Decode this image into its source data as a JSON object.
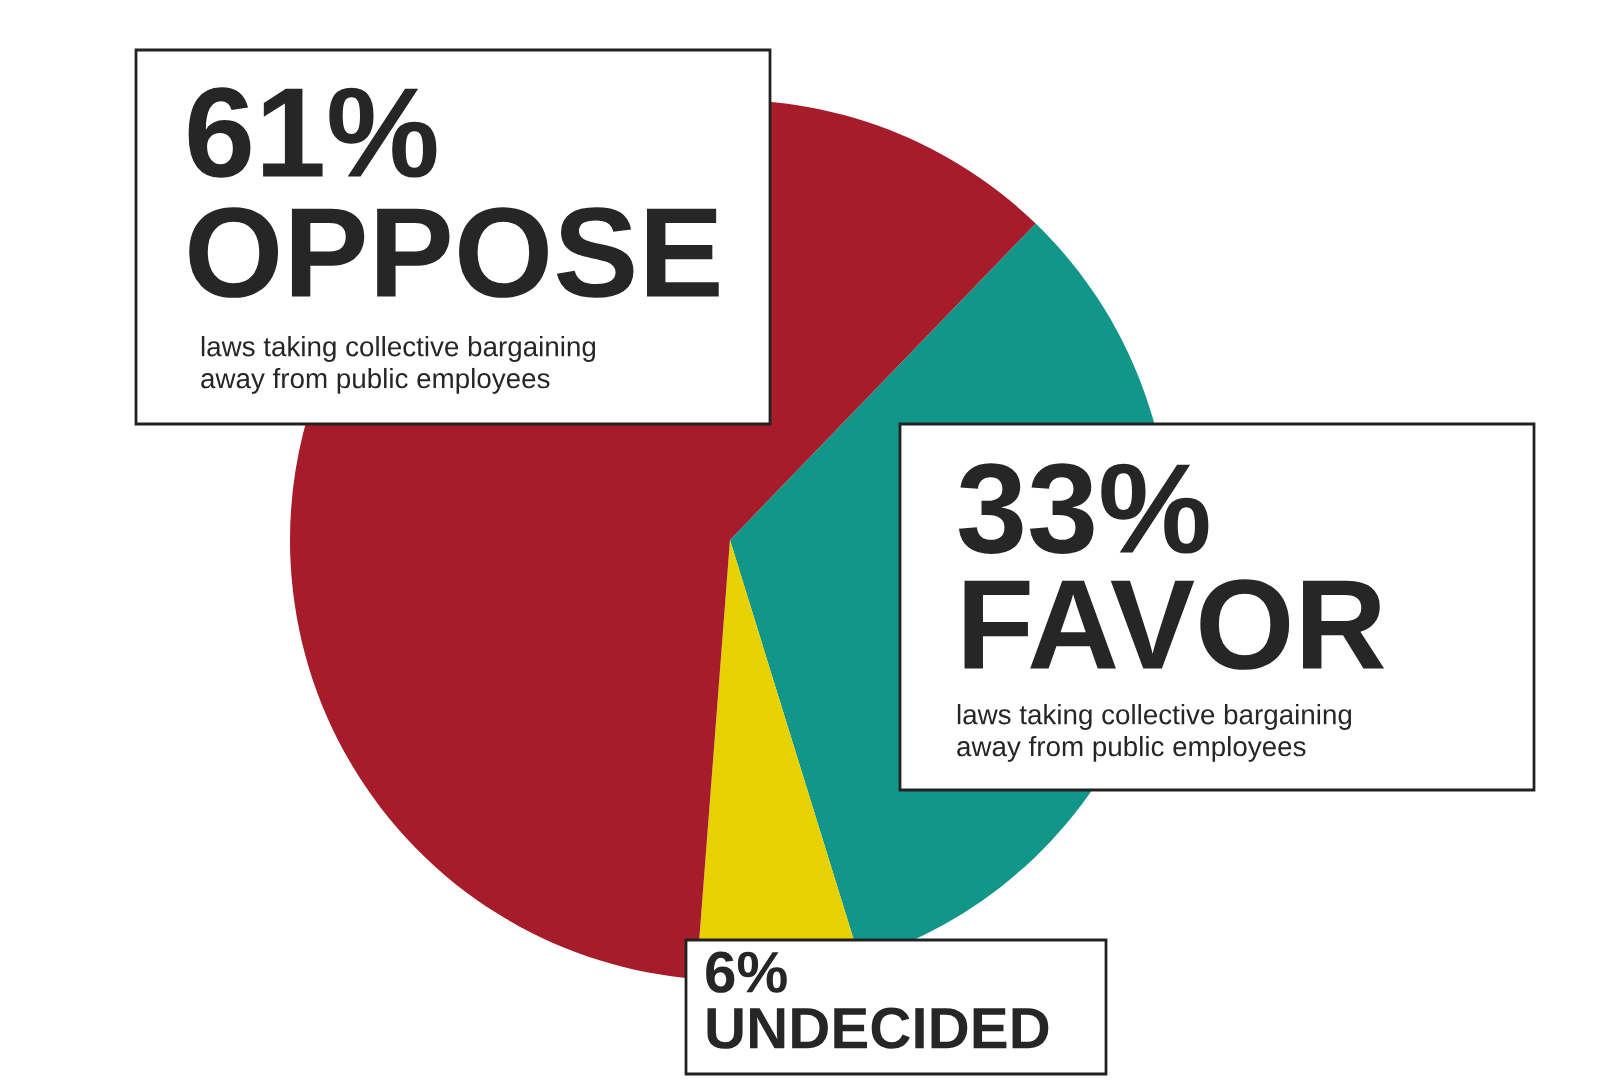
{
  "chart_data": {
    "type": "pie",
    "categories": [
      "FAVOR",
      "UNDECIDED",
      "OPPOSE"
    ],
    "values": [
      33,
      6,
      61
    ],
    "value_labels": [
      "33%",
      "6%",
      "61%"
    ],
    "colors": [
      "#12968a",
      "#e6d200",
      "#a61c2a"
    ],
    "annotations": [
      "laws taking collective bargaining\naway from public employees",
      "laws taking collective bargaining\naway from public employees"
    ]
  }
}
